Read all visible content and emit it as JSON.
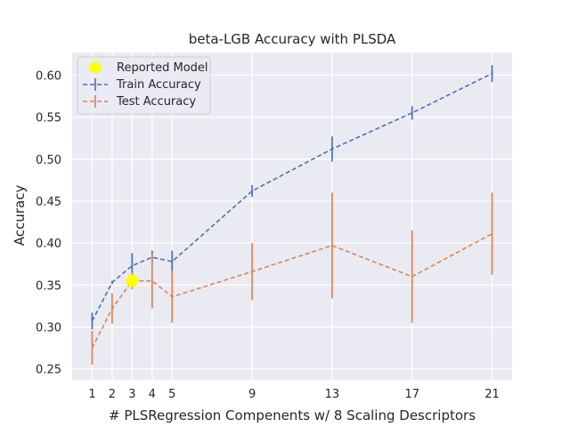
{
  "chart_data": {
    "type": "line",
    "title": "beta-LGB Accuracy with PLSDA",
    "xlabel": "# PLSRegression Compenents w/ 8 Scaling Descriptors",
    "ylabel": "Accuracy",
    "x_ticks": [
      1,
      2,
      3,
      4,
      5,
      9,
      13,
      17,
      21
    ],
    "y_ticks": [
      0.25,
      0.3,
      0.35,
      0.4,
      0.45,
      0.5,
      0.55,
      0.6
    ],
    "y_tick_labels": [
      "0.25",
      "0.30",
      "0.35",
      "0.40",
      "0.45",
      "0.50",
      "0.55",
      "0.60"
    ],
    "xlim": [
      0,
      22
    ],
    "ylim": [
      0.237,
      0.627
    ],
    "grid": true,
    "legend_position": "top-left",
    "series": [
      {
        "name": "Train Accuracy",
        "color": "#4c72b0",
        "style": "dashed",
        "x": [
          1,
          2,
          3,
          4,
          5,
          9,
          13,
          17,
          21
        ],
        "y": [
          0.307,
          0.353,
          0.373,
          0.383,
          0.378,
          0.462,
          0.512,
          0.555,
          0.602
        ],
        "yerr": [
          0.01,
          0.002,
          0.015,
          0.008,
          0.013,
          0.007,
          0.015,
          0.008,
          0.01
        ]
      },
      {
        "name": "Test Accuracy",
        "color": "#dd8452",
        "style": "dashed",
        "x": [
          1,
          2,
          3,
          4,
          5,
          9,
          13,
          17,
          21
        ],
        "y": [
          0.275,
          0.322,
          0.355,
          0.355,
          0.336,
          0.366,
          0.397,
          0.36,
          0.411
        ],
        "yerr": [
          0.02,
          0.018,
          0.01,
          0.033,
          0.031,
          0.034,
          0.063,
          0.055,
          0.049
        ]
      }
    ],
    "highlight": {
      "name": "Reported Model",
      "color": "#ffff00",
      "x": 3,
      "y": 0.355
    }
  }
}
